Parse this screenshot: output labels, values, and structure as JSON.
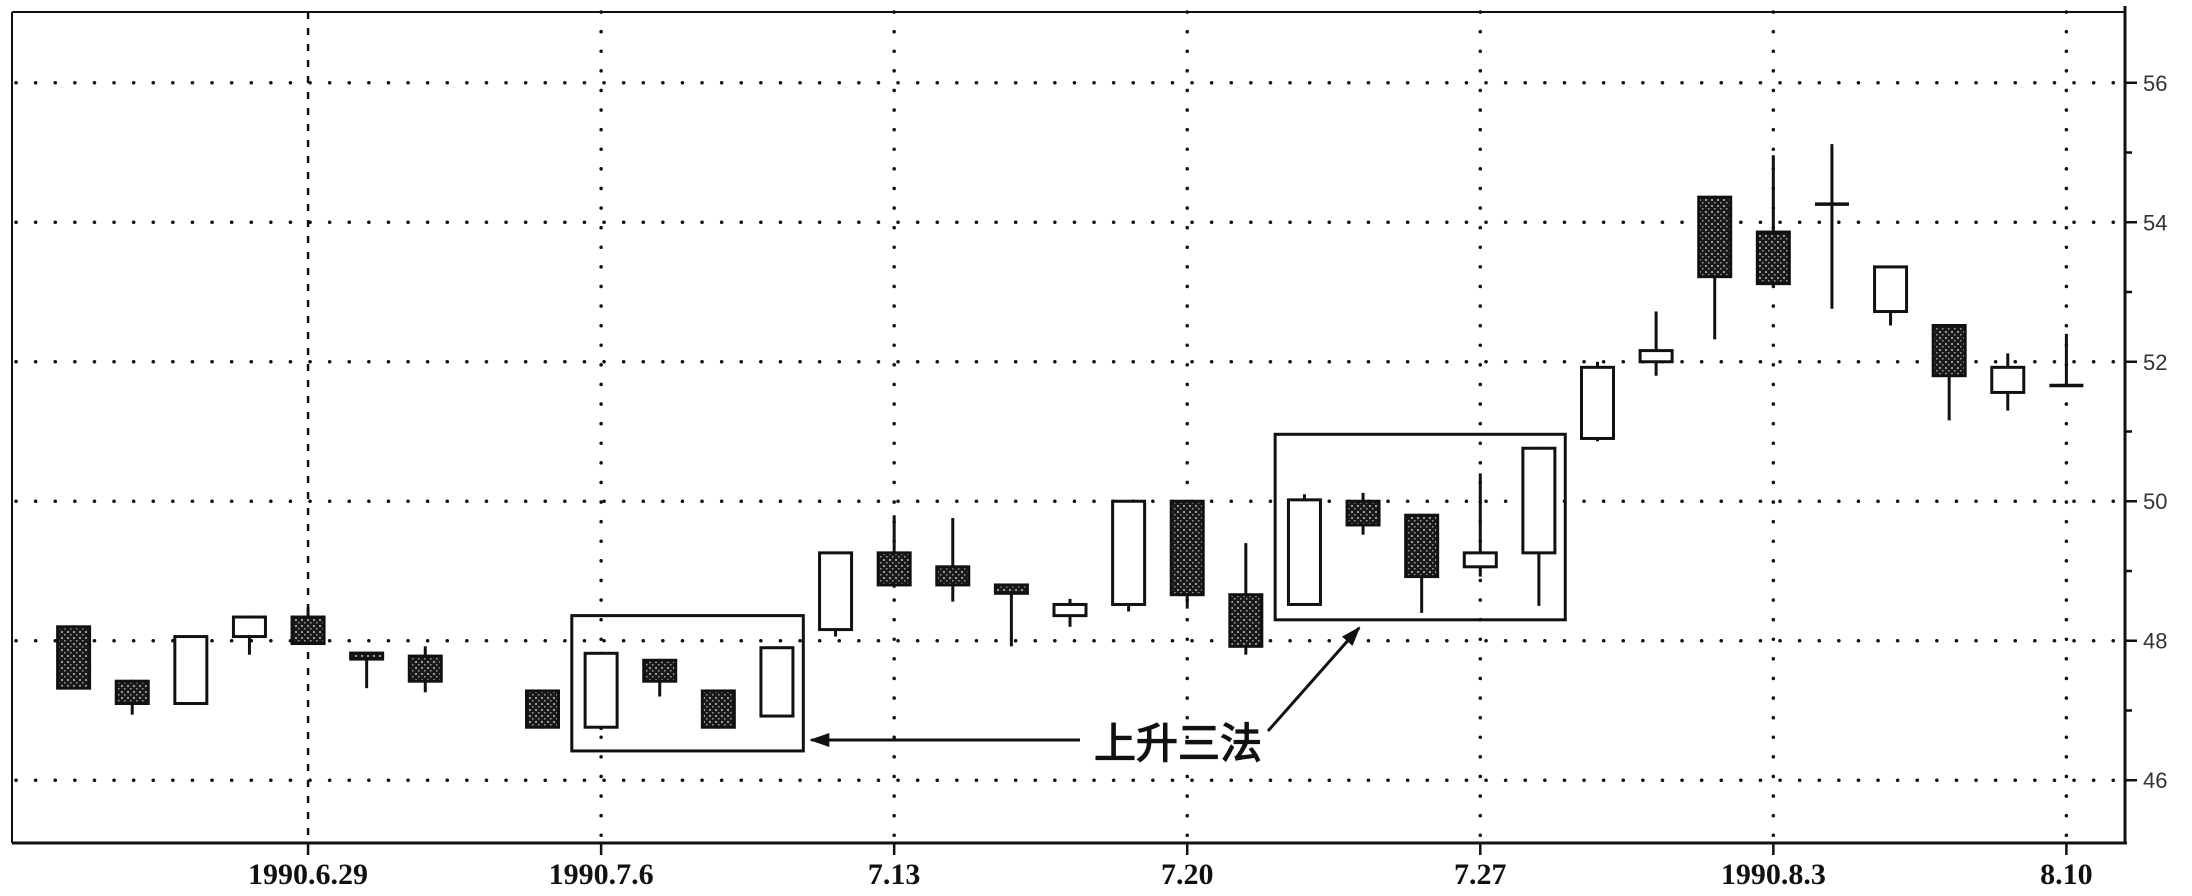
{
  "chart_data": {
    "type": "candlestick",
    "xlim": [
      "1990-06-22",
      "1990-08-13"
    ],
    "ylim": [
      45.1,
      56.9
    ],
    "y_axis_side": "right",
    "grid": true,
    "x_ticks": [
      {
        "date": "1990-06-29",
        "label": "1990.6.29"
      },
      {
        "date": "1990-07-06",
        "label": "1990.7.6"
      },
      {
        "date": "1990-07-13",
        "label": "7.13"
      },
      {
        "date": "1990-07-20",
        "label": "7.20"
      },
      {
        "date": "1990-07-27",
        "label": "7.27"
      },
      {
        "date": "1990-08-03",
        "label": "1990.8.3"
      },
      {
        "date": "1990-08-10",
        "label": "8.10"
      }
    ],
    "y_ticks": [
      46,
      48,
      50,
      52,
      54,
      56
    ],
    "colors": {
      "outline": "#111111",
      "up_fill": "#ffffff",
      "down_fill": "#1a1a1a",
      "down_texture": "#9a9a9a"
    },
    "candles": [
      {
        "date": "1990-06-25",
        "open": 48.2,
        "high": 48.22,
        "low": 47.3,
        "close": 47.32
      },
      {
        "date": "1990-06-26",
        "open": 47.42,
        "high": 47.44,
        "low": 46.94,
        "close": 47.1
      },
      {
        "date": "1990-06-27",
        "open": 47.1,
        "high": 48.06,
        "low": 47.1,
        "close": 48.06
      },
      {
        "date": "1990-06-28",
        "open": 48.06,
        "high": 48.36,
        "low": 47.8,
        "close": 48.34
      },
      {
        "date": "1990-06-29",
        "open": 48.34,
        "high": 48.48,
        "low": 47.96,
        "close": 47.96
      },
      {
        "date": "1990-07-02",
        "open": 47.8,
        "high": 47.8,
        "low": 47.32,
        "close": 47.76
      },
      {
        "date": "1990-07-03",
        "open": 47.78,
        "high": 47.92,
        "low": 47.26,
        "close": 47.42
      },
      {
        "date": "1990-07-05",
        "open": 47.28,
        "high": 47.3,
        "low": 46.74,
        "close": 46.76
      },
      {
        "date": "1990-07-06",
        "open": 46.76,
        "high": 47.84,
        "low": 46.72,
        "close": 47.82
      },
      {
        "date": "1990-07-09",
        "open": 47.72,
        "high": 47.74,
        "low": 47.2,
        "close": 47.42
      },
      {
        "date": "1990-07-10",
        "open": 47.28,
        "high": 47.3,
        "low": 46.74,
        "close": 46.76
      },
      {
        "date": "1990-07-11",
        "open": 46.92,
        "high": 47.9,
        "low": 46.9,
        "close": 47.9
      },
      {
        "date": "1990-07-12",
        "open": 48.16,
        "high": 49.28,
        "low": 48.06,
        "close": 49.26
      },
      {
        "date": "1990-07-13",
        "open": 49.26,
        "high": 49.8,
        "low": 48.76,
        "close": 48.8
      },
      {
        "date": "1990-07-16",
        "open": 49.06,
        "high": 49.76,
        "low": 48.56,
        "close": 48.8
      },
      {
        "date": "1990-07-17",
        "open": 48.8,
        "high": 48.8,
        "low": 47.92,
        "close": 48.68
      },
      {
        "date": "1990-07-18",
        "open": 48.36,
        "high": 48.6,
        "low": 48.2,
        "close": 48.52
      },
      {
        "date": "1990-07-19",
        "open": 48.52,
        "high": 50.0,
        "low": 48.42,
        "close": 50.0
      },
      {
        "date": "1990-07-20",
        "open": 50.0,
        "high": 50.02,
        "low": 48.46,
        "close": 48.66
      },
      {
        "date": "1990-07-23",
        "open": 48.66,
        "high": 49.4,
        "low": 47.8,
        "close": 47.92
      },
      {
        "date": "1990-07-24",
        "open": 48.52,
        "high": 50.1,
        "low": 48.5,
        "close": 50.02
      },
      {
        "date": "1990-07-25",
        "open": 50.0,
        "high": 50.12,
        "low": 49.52,
        "close": 49.66
      },
      {
        "date": "1990-07-26",
        "open": 49.8,
        "high": 49.82,
        "low": 48.4,
        "close": 48.92
      },
      {
        "date": "1990-07-27",
        "open": 49.06,
        "high": 50.4,
        "low": 48.92,
        "close": 49.26
      },
      {
        "date": "1990-07-30",
        "open": 49.26,
        "high": 50.78,
        "low": 48.5,
        "close": 50.76
      },
      {
        "date": "1990-07-31",
        "open": 50.9,
        "high": 52.0,
        "low": 50.86,
        "close": 51.92
      },
      {
        "date": "1990-08-01",
        "open": 52.0,
        "high": 52.72,
        "low": 51.8,
        "close": 52.16
      },
      {
        "date": "1990-08-02",
        "open": 54.36,
        "high": 54.38,
        "low": 52.32,
        "close": 53.22
      },
      {
        "date": "1990-08-03",
        "open": 53.86,
        "high": 54.96,
        "low": 53.1,
        "close": 53.12
      },
      {
        "date": "1990-08-06",
        "open": 54.26,
        "high": 55.12,
        "low": 52.76,
        "close": 54.26
      },
      {
        "date": "1990-08-07",
        "open": 52.72,
        "high": 53.38,
        "low": 52.52,
        "close": 53.36
      },
      {
        "date": "1990-08-08",
        "open": 52.52,
        "high": 52.54,
        "low": 51.16,
        "close": 51.8
      },
      {
        "date": "1990-08-09",
        "open": 51.56,
        "high": 52.12,
        "low": 51.3,
        "close": 51.92
      },
      {
        "date": "1990-08-10",
        "open": 51.66,
        "high": 52.4,
        "low": 51.64,
        "close": 51.66
      }
    ],
    "annotations": [
      {
        "text": "上升三法",
        "boxes": [
          {
            "from": "1990-07-06",
            "to": "1990-07-11",
            "price_range": [
              46.42,
              48.36
            ]
          },
          {
            "from": "1990-07-24",
            "to": "1990-07-30",
            "price_range": [
              48.3,
              50.96
            ]
          }
        ]
      }
    ]
  }
}
